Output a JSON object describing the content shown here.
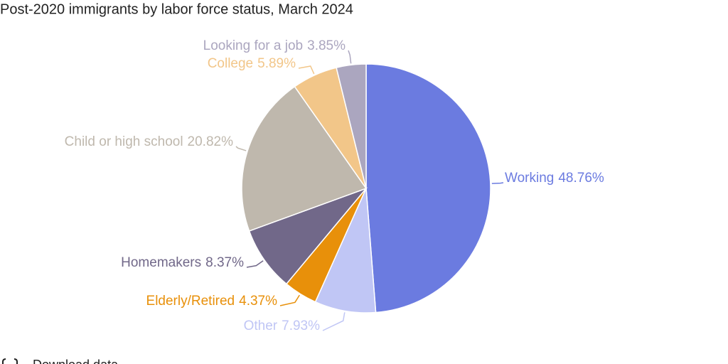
{
  "chart_data": {
    "type": "pie",
    "title": "Post-2020 immigrants by labor force status, March 2024",
    "categories": [
      "Working",
      "Other",
      "Elderly/Retired",
      "Homemakers",
      "Child or high school",
      "College",
      "Looking for a job"
    ],
    "values": [
      48.76,
      7.93,
      4.37,
      8.37,
      20.82,
      5.89,
      3.85
    ],
    "value_labels": [
      "48.76%",
      "7.93%",
      "4.37%",
      "8.37%",
      "20.82%",
      "5.89%",
      "3.85%"
    ],
    "colors": [
      "#6b7be0",
      "#c0c6f5",
      "#e8900a",
      "#716889",
      "#bfb8ad",
      "#f2c689",
      "#aba6bf"
    ]
  },
  "footer": {
    "link": "Download data"
  }
}
